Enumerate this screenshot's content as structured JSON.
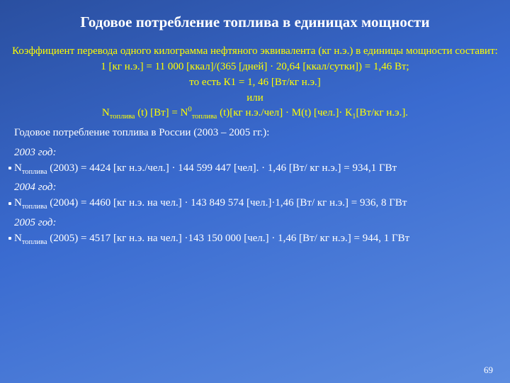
{
  "title": "Годовое потребление топлива в единицах мощности",
  "intro_lines": [
    "Коэффициент перевода одного килограмма нефтяного эквивалента (кг н.э.) в единицы мощности составит:",
    "1 [кг н.э.]  = 11 000 [ккал]/(365 [дней] · 20,64 [ккал/сутки]) = 1,46 Вт;",
    "то есть  К1 = 1, 46 [Вт/кг н.э.]",
    "или"
  ],
  "intro_formula_prefix": "N",
  "intro_formula_sub1": "топлива",
  "intro_formula_mid1": " (t) [Вт] = N",
  "intro_formula_sup": "0",
  "intro_formula_sub2": "топлива",
  "intro_formula_mid2": " (t)[кг н.э./чел] · M(t) [чел.]·  К",
  "intro_formula_sub3": "1",
  "intro_formula_end": "[Вт/кг н.э.].",
  "years_header": "Годовое потребление топлива в России (2003 – 2005 гг.):",
  "years": [
    {
      "label": "2003 год:",
      "pre": "N",
      "sub": "топлива",
      "rest": " (2003) = 4424 [кг н.э./чел.] · 144 599 447 [чел]. · 1,46  [Вт/ кг н.э.] = 934,1 ГВт"
    },
    {
      "label": "2004 год:",
      "pre": "N",
      "sub": "топлива",
      "rest": " (2004) = 4460 [кг н.э. на чел.] · 143 849 574 [чел.]·1,46  [Вт/ кг н.э.] = 936, 8 ГВт"
    },
    {
      "label": "2005 год:",
      "pre": "N",
      "sub": "топлива",
      "rest": " (2005) = 4517 [кг н.э. на чел.] ·143 150 000 [чел.] · 1,46  [Вт/ кг н.э.] = 944, 1 ГВт"
    }
  ],
  "page_number": "69",
  "colors": {
    "title": "#ffffff",
    "intro": "#ffff00",
    "body": "#ffffff",
    "bg_top": "#2a4fa0",
    "bg_bottom": "#5c8ce0"
  },
  "font_sizes": {
    "title": 21,
    "body": 15,
    "pagenum": 13
  }
}
